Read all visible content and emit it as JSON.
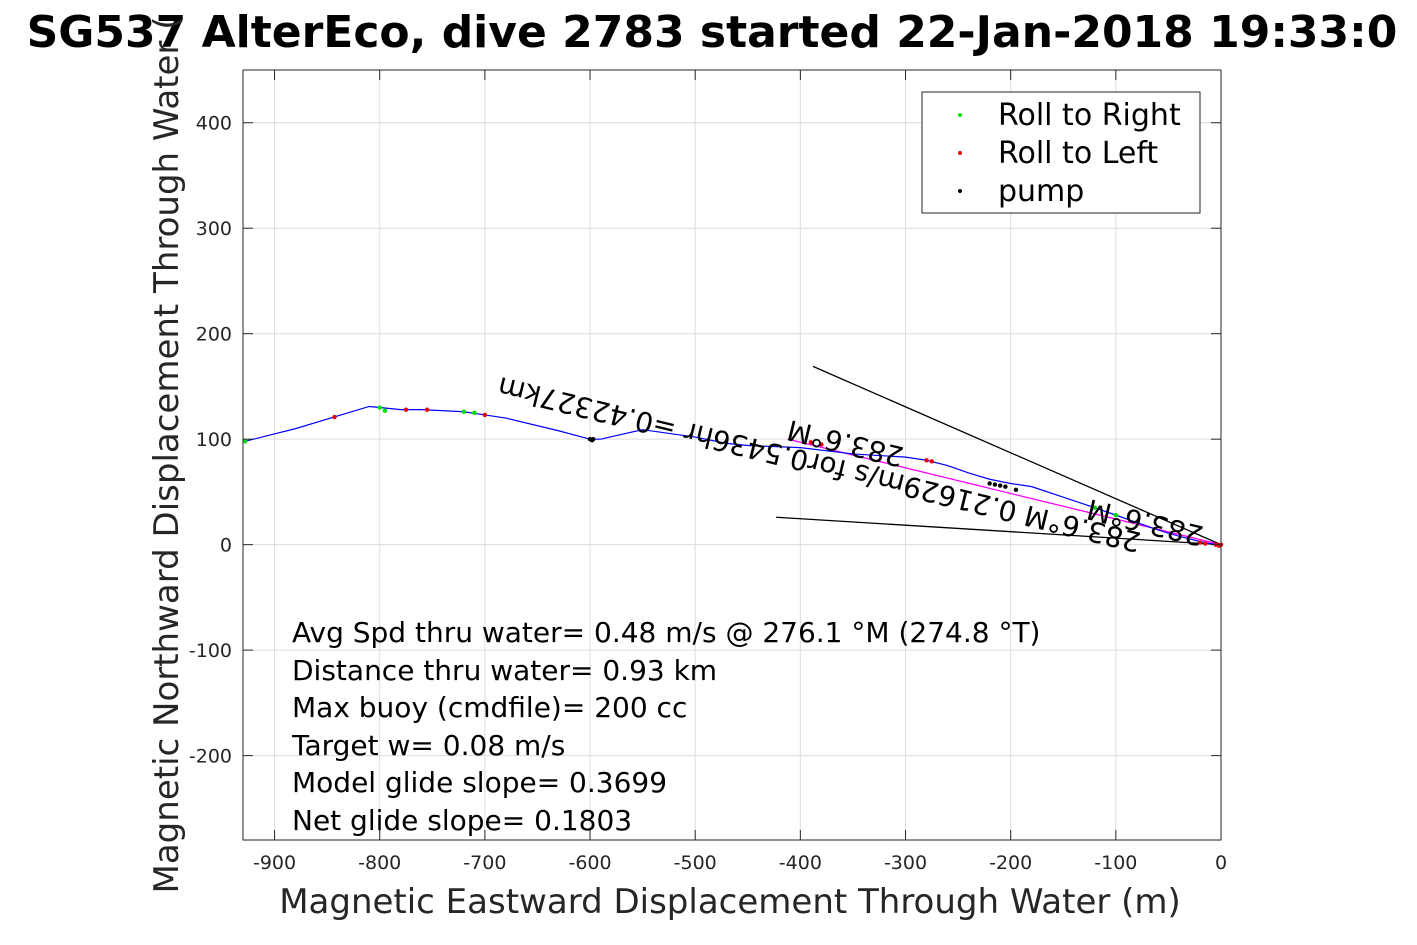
{
  "chart_data": {
    "type": "line",
    "title": "SG537 AlterEco, dive 2783 started 22-Jan-2018 19:33:0",
    "xlabel": "Magnetic Eastward Displacement Through Water (m)",
    "ylabel": "Magnetic Northward Displacement Through Water (",
    "xlim": [
      -930,
      0
    ],
    "ylim": [
      -280,
      450
    ],
    "xticks": [
      -900,
      -800,
      -700,
      -600,
      -500,
      -400,
      -300,
      -200,
      -100,
      0
    ],
    "yticks": [
      -200,
      -100,
      0,
      100,
      200,
      300,
      400
    ],
    "grid": true,
    "legend_position": "top-right",
    "legend": [
      "Roll to Right",
      "Roll to Left",
      "pump"
    ],
    "colors": {
      "track": "#0000ff",
      "roll_right": "#00dd00",
      "roll_left": "#ee0000",
      "pump": "#000000",
      "heading_line": "#ff00ff"
    },
    "track": {
      "x": [
        0,
        -10,
        -20,
        -40,
        -60,
        -80,
        -100,
        -120,
        -150,
        -180,
        -200,
        -220,
        -240,
        -260,
        -280,
        -300,
        -350,
        -400,
        -450,
        -470,
        -500,
        -550,
        -590,
        -600,
        -630,
        -680,
        -700,
        -720,
        -760,
        -780,
        -800,
        -810,
        -840,
        -880,
        -928
      ],
      "y": [
        0,
        1,
        3,
        8,
        14,
        21,
        28,
        35,
        45,
        55,
        58,
        62,
        68,
        75,
        80,
        83,
        86,
        92,
        94,
        96,
        102,
        109,
        100,
        100,
        108,
        120,
        123,
        126,
        128,
        128,
        130,
        131,
        122,
        110,
        98
      ]
    },
    "roll_right": {
      "x": [
        -928,
        -720,
        -710,
        -800,
        -795,
        -100,
        -120
      ],
      "y": [
        98,
        126,
        125,
        130,
        127,
        28,
        35
      ]
    },
    "roll_left": {
      "x": [
        -843,
        -700,
        -755,
        -775,
        -280,
        -275,
        -380,
        -390,
        -20,
        -15,
        -5,
        0,
        -2
      ],
      "y": [
        121,
        123,
        128,
        128,
        80,
        79,
        95,
        97,
        2,
        1,
        0,
        0,
        -1
      ]
    },
    "pump": {
      "x": [
        -600,
        -597,
        -598,
        -210,
        -215,
        -205,
        -220,
        -195
      ],
      "y": [
        100,
        100,
        99,
        56,
        57,
        55,
        58,
        52
      ]
    },
    "heading_lines": [
      {
        "x": [
          0,
          -388
        ],
        "y": [
          0,
          169
        ]
      },
      {
        "x": [
          0,
          -423
        ],
        "y": [
          0,
          26
        ]
      },
      {
        "x": [
          0,
          -412
        ],
        "y": [
          0,
          100
        ]
      }
    ],
    "rotated_labels": [
      {
        "text": "283.6°M 0.21629m/s for0.5436hr =0.42327km",
        "x": -380,
        "y": 85,
        "angle": 193.7
      },
      {
        "text": "283.6°M",
        "x": -70,
        "y": 30,
        "angle": 193.7
      },
      {
        "text": "283.6°M",
        "x": -355,
        "y": 105,
        "angle": 193.7
      }
    ],
    "annotations": [
      "Avg Spd thru water=  0.48 m/s @ 276.1 °M (274.8 °T)",
      "Distance thru water=  0.93 km",
      "Max buoy (cmdfile)= 200 cc",
      "Target w= 0.08 m/s",
      "Model glide slope= 0.3699",
      "Net glide slope= 0.1803"
    ]
  }
}
